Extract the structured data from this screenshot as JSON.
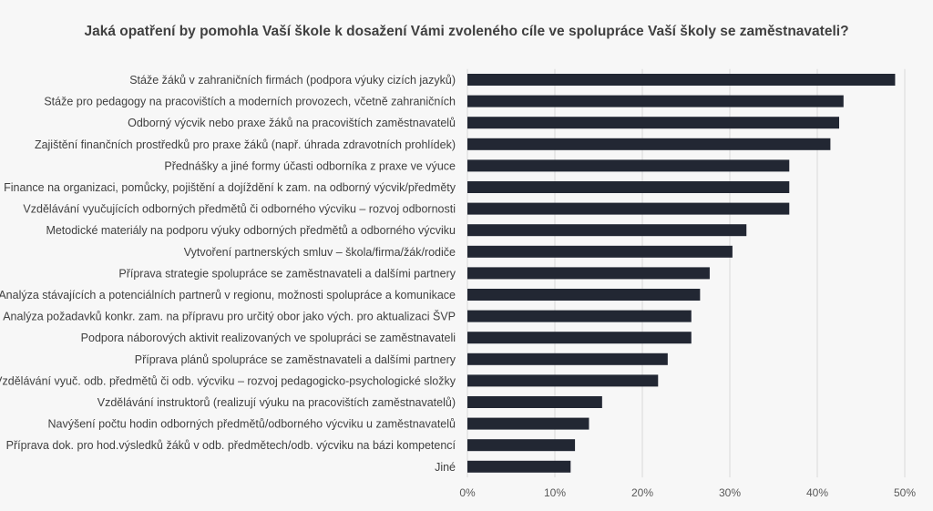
{
  "chart_data": {
    "type": "bar",
    "orientation": "horizontal",
    "title": "Jaká opatření by pomohla Vaší škole k dosažení Vámi zvoleného cíle ve spolupráce Vaší školy se zaměstnavateli?",
    "categories": [
      "Stáže žáků v zahraničních firmách (podpora výuky cizích jazyků)",
      "Stáže pro pedagogy na pracovištích a moderních provozech, včetně zahraničních",
      "Odborný výcvik nebo praxe žáků na pracovištích zaměstnavatelů",
      "Zajištění finančních prostředků pro praxe žáků (např. úhrada zdravotních prohlídek)",
      "Přednášky a jiné formy účasti odborníka z praxe ve výuce",
      "Finance na organizaci, pomůcky, pojištění a dojíždění k zam. na odborný výcvik/předměty",
      "Vzdělávání vyučujících odborných předmětů či odborného výcviku – rozvoj odbornosti",
      "Metodické materiály na podporu výuky odborných předmětů a odborného výcviku",
      "Vytvoření partnerských smluv – škola/firma/žák/rodiče",
      "Příprava strategie spolupráce se zaměstnavateli a dalšími partnery",
      "Analýza stávajících a potenciálních partnerů v regionu, možnosti spolupráce a komunikace",
      "Analýza požadavků konkr. zam. na přípravu pro určitý obor jako vých. pro aktualizaci ŠVP",
      "Podpora náborových aktivit realizovaných ve spolupráci se zaměstnavateli",
      "Příprava plánů spolupráce se zaměstnavateli a dalšími partnery",
      "Vzdělávání vyuč. odb. předmětů či odb. výcviku – rozvoj pedagogicko-psychologické složky",
      "Vzdělávání instruktorů (realizují výuku na pracovištích zaměstnavatelů)",
      "Navýšení počtu hodin odborných předmětů/odborného výcviku u zaměstnavatelů",
      "Příprava dok. pro hod.výsledků žáků v odb. předmětech/odb. výcviku na bázi kompetencí",
      "Jiné"
    ],
    "values": [
      48.9,
      43.0,
      42.5,
      41.5,
      36.8,
      36.8,
      36.8,
      31.9,
      30.3,
      27.7,
      26.6,
      25.6,
      25.6,
      22.9,
      21.8,
      15.4,
      13.9,
      12.3,
      11.8
    ],
    "xlim": [
      0,
      50
    ],
    "xticks": [
      "0%",
      "10%",
      "20%",
      "30%",
      "40%",
      "50%"
    ],
    "tick_values": [
      0,
      10,
      20,
      30,
      40,
      50
    ],
    "grid": true,
    "bar_color": "#222733",
    "grid_color": "#d9d9d9"
  }
}
